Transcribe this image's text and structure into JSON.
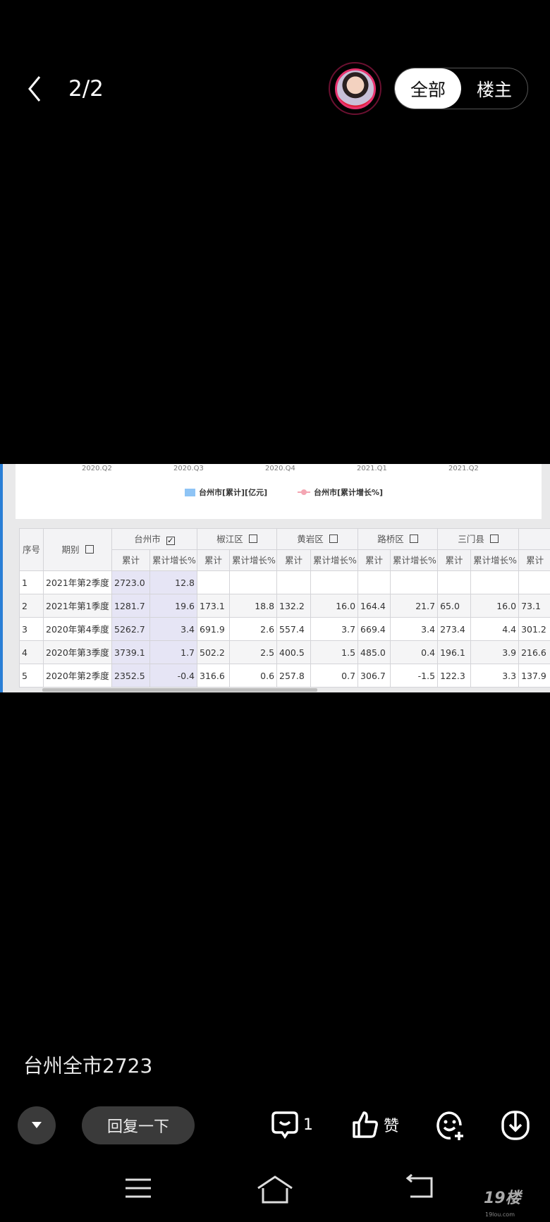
{
  "header": {
    "counter": "2/2",
    "filter_all": "全部",
    "filter_op": "楼主"
  },
  "chart": {
    "x_ticks": [
      "2020.Q2",
      "2020.Q3",
      "2020.Q4",
      "2021.Q1",
      "2021.Q2"
    ],
    "legend": [
      "台州市[累计][亿元]",
      "台州市[累计增长%]"
    ],
    "colors": {
      "bar": "#8ec4f5",
      "line": "#f4a6b3"
    }
  },
  "table": {
    "h_index": "序号",
    "h_period": "期别",
    "regions": [
      {
        "name": "台州市",
        "checked": true
      },
      {
        "name": "椒江区"
      },
      {
        "name": "黄岩区"
      },
      {
        "name": "路桥区"
      },
      {
        "name": "三门县"
      }
    ],
    "sub": {
      "cum": "累计",
      "growth": "累计增长%"
    },
    "rows": [
      [
        "1",
        "2021年第2季度",
        "2723.0",
        "12.8",
        "",
        "",
        "",
        "",
        "",
        "",
        "",
        "",
        ""
      ],
      [
        "2",
        "2021年第1季度",
        "1281.7",
        "19.6",
        "173.1",
        "18.8",
        "132.2",
        "16.0",
        "164.4",
        "21.7",
        "65.0",
        "16.0",
        "73.1"
      ],
      [
        "3",
        "2020年第4季度",
        "5262.7",
        "3.4",
        "691.9",
        "2.6",
        "557.4",
        "3.7",
        "669.4",
        "3.4",
        "273.4",
        "4.4",
        "301.2"
      ],
      [
        "4",
        "2020年第3季度",
        "3739.1",
        "1.7",
        "502.2",
        "2.5",
        "400.5",
        "1.5",
        "485.0",
        "0.4",
        "196.1",
        "3.9",
        "216.6"
      ],
      [
        "5",
        "2020年第2季度",
        "2352.5",
        "-0.4",
        "316.6",
        "0.6",
        "257.8",
        "0.7",
        "306.7",
        "-1.5",
        "122.3",
        "3.3",
        "137.9"
      ]
    ]
  },
  "caption": "台州全市2723",
  "footer": {
    "reply": "回复一下",
    "comments": "1",
    "like": "赞"
  },
  "watermark": {
    "logo": "19楼",
    "url": "19lou.com"
  }
}
